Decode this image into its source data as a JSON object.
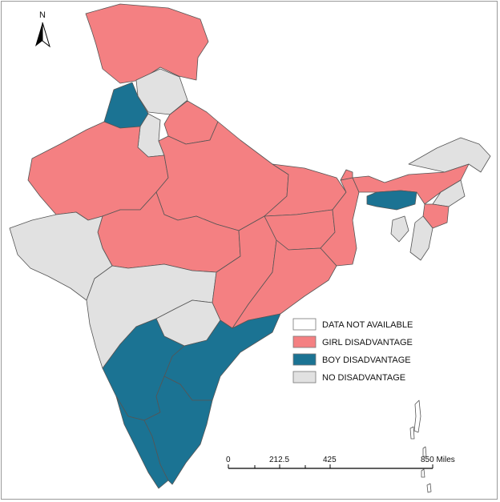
{
  "north": {
    "label": "N"
  },
  "colors": {
    "data_not_available": "#ffffff",
    "girl_disadvantage": "#f48082",
    "boy_disadvantage": "#1b7393",
    "no_disadvantage": "#e1e1e1",
    "border": "#555555"
  },
  "legend": {
    "items": [
      {
        "label": "DATA NOT AVAILABLE",
        "color": "#ffffff"
      },
      {
        "label": "GIRL DISADVANTAGE",
        "color": "#f48082"
      },
      {
        "label": "BOY DISADVANTAGE",
        "color": "#1b7393"
      },
      {
        "label": "NO DISADVANTAGE",
        "color": "#e1e1e1"
      }
    ]
  },
  "scale_bar": {
    "ticks": [
      "0",
      "212.5",
      "425",
      "850 Miles"
    ]
  },
  "regions": [
    {
      "name": "Jammu & Kashmir",
      "category": "girl_disadvantage"
    },
    {
      "name": "Himachal Pradesh",
      "category": "no_disadvantage"
    },
    {
      "name": "Punjab",
      "category": "boy_disadvantage"
    },
    {
      "name": "Haryana",
      "category": "no_disadvantage"
    },
    {
      "name": "Uttarakhand",
      "category": "girl_disadvantage"
    },
    {
      "name": "Rajasthan",
      "category": "girl_disadvantage"
    },
    {
      "name": "Uttar Pradesh",
      "category": "girl_disadvantage"
    },
    {
      "name": "Bihar",
      "category": "girl_disadvantage"
    },
    {
      "name": "Madhya Pradesh",
      "category": "girl_disadvantage"
    },
    {
      "name": "Gujarat",
      "category": "no_disadvantage"
    },
    {
      "name": "Maharashtra",
      "category": "no_disadvantage"
    },
    {
      "name": "Chhattisgarh",
      "category": "girl_disadvantage"
    },
    {
      "name": "Jharkhand",
      "category": "girl_disadvantage"
    },
    {
      "name": "West Bengal",
      "category": "girl_disadvantage"
    },
    {
      "name": "Odisha",
      "category": "girl_disadvantage"
    },
    {
      "name": "Telangana",
      "category": "no_disadvantage"
    },
    {
      "name": "Andhra Pradesh",
      "category": "boy_disadvantage"
    },
    {
      "name": "Karnataka",
      "category": "boy_disadvantage"
    },
    {
      "name": "Kerala",
      "category": "boy_disadvantage"
    },
    {
      "name": "Tamil Nadu",
      "category": "boy_disadvantage"
    },
    {
      "name": "Sikkim",
      "category": "girl_disadvantage"
    },
    {
      "name": "Arunachal Pradesh",
      "category": "no_disadvantage"
    },
    {
      "name": "Assam",
      "category": "girl_disadvantage"
    },
    {
      "name": "Meghalaya",
      "category": "boy_disadvantage"
    },
    {
      "name": "Nagaland",
      "category": "no_disadvantage"
    },
    {
      "name": "Manipur",
      "category": "girl_disadvantage"
    },
    {
      "name": "Mizoram",
      "category": "no_disadvantage"
    },
    {
      "name": "Tripura",
      "category": "no_disadvantage"
    },
    {
      "name": "Andaman & Nicobar Islands",
      "category": "data_not_available"
    }
  ]
}
